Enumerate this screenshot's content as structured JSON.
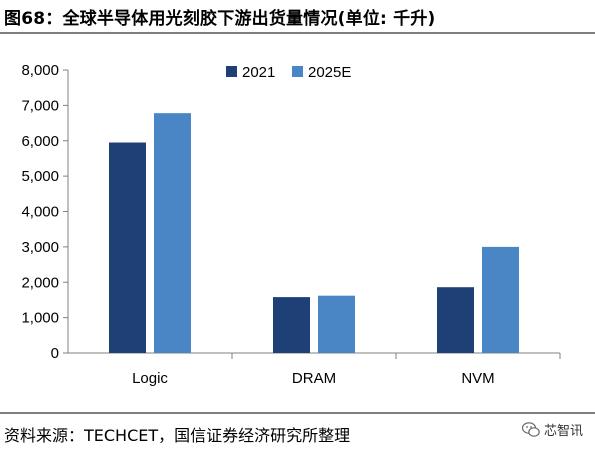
{
  "header": {
    "title": "图68：全球半导体用光刻胶下游出货量情况(单位: 千升)"
  },
  "footer": {
    "source": "资料来源：TECHCET，国信证券经济研究所整理",
    "watermark": "芯智讯"
  },
  "chart_data": {
    "type": "bar",
    "categories": [
      "Logic",
      "DRAM",
      "NVM"
    ],
    "series": [
      {
        "name": "2021",
        "values": [
          5950,
          1580,
          1860
        ],
        "color": "#1f3f77"
      },
      {
        "name": "2025E",
        "values": [
          6780,
          1620,
          3000
        ],
        "color": "#4a86c5"
      }
    ],
    "ylim": [
      0,
      8000
    ],
    "yticks": [
      0,
      1000,
      2000,
      3000,
      4000,
      5000,
      6000,
      7000,
      8000
    ],
    "ytick_labels": [
      "0",
      "1,000",
      "2,000",
      "3,000",
      "4,000",
      "5,000",
      "6,000",
      "7,000",
      "8,000"
    ],
    "grid": false,
    "legend": "top-center"
  }
}
